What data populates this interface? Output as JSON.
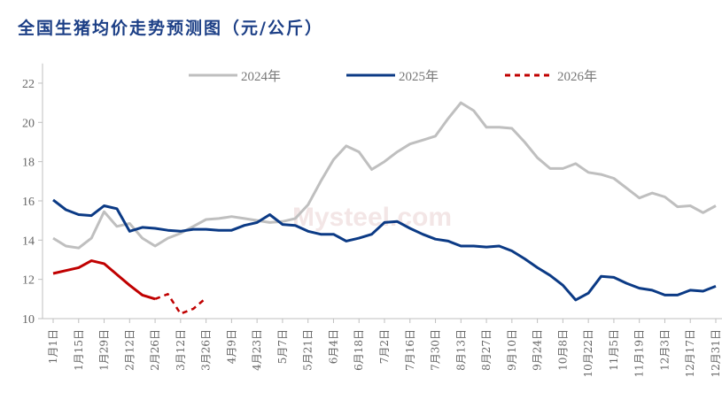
{
  "chart_data": {
    "type": "line",
    "title": "全国生猪均价走势预测图（元/公斤）",
    "xlabel": "",
    "ylabel": "",
    "ylim": [
      10,
      23
    ],
    "yticks": [
      10,
      12,
      14,
      16,
      18,
      20,
      22
    ],
    "x_tick_labels": [
      "1月1日",
      "1月15日",
      "1月29日",
      "2月12日",
      "2月26日",
      "3月12日",
      "3月26日",
      "4月9日",
      "4月23日",
      "5月7日",
      "5月21日",
      "6月4日",
      "6月18日",
      "7月2日",
      "7月16日",
      "7月30日",
      "8月13日",
      "8月27日",
      "9月10日",
      "9月24日",
      "10月8日",
      "10月22日",
      "11月5日",
      "11月19日",
      "12月3日",
      "12月17日",
      "12月31日"
    ],
    "x_points_weekly": 53,
    "legend_position": "top",
    "grid": false,
    "series": [
      {
        "name": "2024年",
        "color": "#bfbfbf",
        "style": "solid",
        "values": [
          14.1,
          13.7,
          13.6,
          14.1,
          15.45,
          14.7,
          14.85,
          14.1,
          13.7,
          14.1,
          14.35,
          14.7,
          15.05,
          15.1,
          15.2,
          15.1,
          15.0,
          14.9,
          14.95,
          15.1,
          15.8,
          17.0,
          18.1,
          18.8,
          18.5,
          17.6,
          18.0,
          18.5,
          18.9,
          19.1,
          19.3,
          20.2,
          21.0,
          20.6,
          19.75,
          19.75,
          19.7,
          19.0,
          18.2,
          17.65,
          17.65,
          17.9,
          17.45,
          17.35,
          17.15,
          16.65,
          16.15,
          16.4,
          16.2,
          15.7,
          15.75,
          15.4,
          15.75
        ]
      },
      {
        "name": "2025年",
        "color": "#0b3a85",
        "style": "solid",
        "values": [
          16.05,
          15.55,
          15.3,
          15.25,
          15.75,
          15.6,
          14.45,
          14.65,
          14.6,
          14.5,
          14.45,
          14.55,
          14.55,
          14.5,
          14.5,
          14.75,
          14.9,
          15.3,
          14.8,
          14.75,
          14.45,
          14.3,
          14.3,
          13.95,
          14.1,
          14.3,
          14.9,
          14.95,
          14.6,
          14.3,
          14.05,
          13.95,
          13.7,
          13.7,
          13.65,
          13.7,
          13.45,
          13.05,
          12.6,
          12.2,
          11.7,
          10.95,
          11.3,
          12.15,
          12.1,
          11.8,
          11.55,
          11.45,
          11.2,
          11.2,
          11.45,
          11.4,
          11.65
        ]
      },
      {
        "name": "2026年",
        "color": "#c00000",
        "style": "solid-actual",
        "values": [
          12.3,
          12.45,
          12.6,
          12.95,
          12.8,
          12.25,
          11.7,
          11.2,
          11.0
        ]
      },
      {
        "name": "2026年",
        "color": "#c00000",
        "style": "dashed-forecast",
        "start_index": 8,
        "values": [
          11.0,
          11.25,
          10.25,
          10.5,
          11.05
        ]
      }
    ]
  }
}
